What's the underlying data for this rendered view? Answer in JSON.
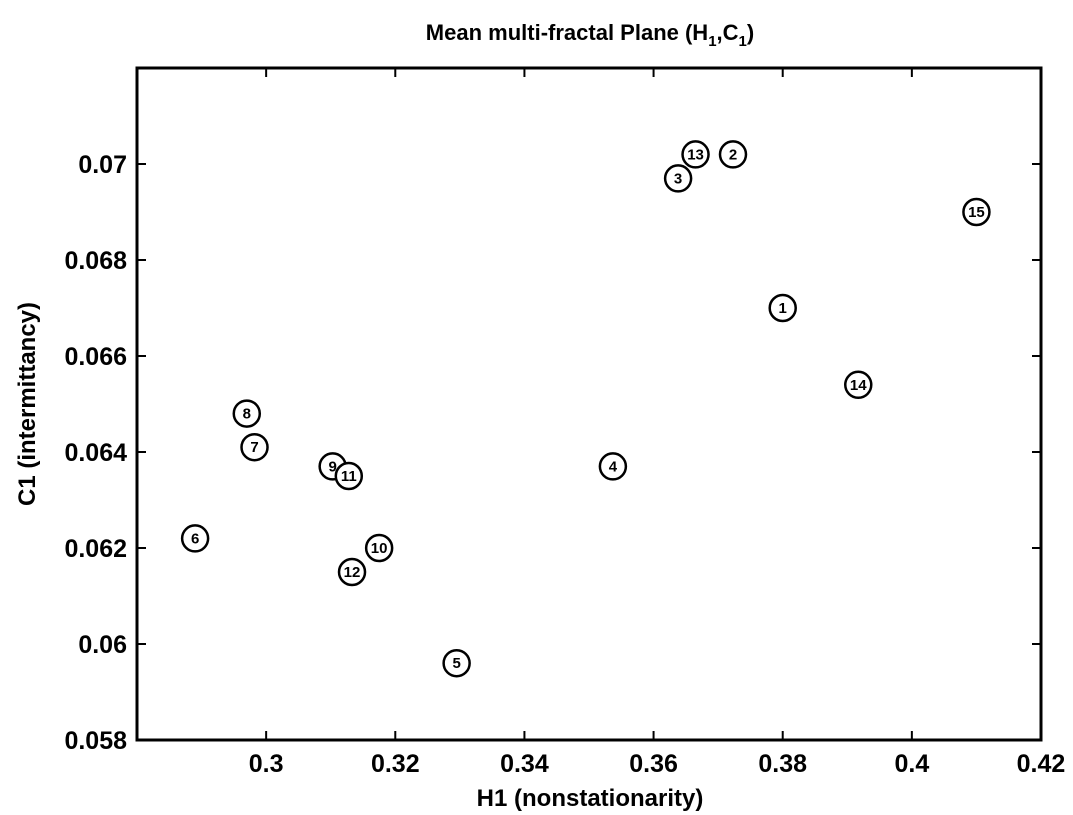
{
  "chart_data": {
    "type": "scatter",
    "title_main": "Mean multi-fractal Plane (H",
    "title_sub1": "1",
    "title_mid": ",C",
    "title_sub2": "1",
    "title_end": ")",
    "xlabel": "H1 (nonstationarity)",
    "ylabel": "C1 (intermittancy)",
    "xlim": [
      0.28,
      0.42
    ],
    "ylim": [
      0.058,
      0.072
    ],
    "xticks": [
      0.3,
      0.32,
      0.34,
      0.36,
      0.38,
      0.4,
      0.42
    ],
    "xtick_labels": [
      "0.3",
      "0.32",
      "0.34",
      "0.36",
      "0.38",
      "0.4",
      "0.42"
    ],
    "yticks": [
      0.058,
      0.06,
      0.062,
      0.064,
      0.066,
      0.068,
      0.07
    ],
    "ytick_labels": [
      "0.058",
      "0.06",
      "0.062",
      "0.064",
      "0.066",
      "0.068",
      "0.07"
    ],
    "grid": false,
    "marker": "numbered circles",
    "points": [
      {
        "label": "1",
        "x": 0.38,
        "y": 0.067
      },
      {
        "label": "2",
        "x": 0.3723,
        "y": 0.0702
      },
      {
        "label": "3",
        "x": 0.3638,
        "y": 0.0697
      },
      {
        "label": "4",
        "x": 0.3537,
        "y": 0.0637
      },
      {
        "label": "5",
        "x": 0.3295,
        "y": 0.0596
      },
      {
        "label": "6",
        "x": 0.289,
        "y": 0.0622
      },
      {
        "label": "7",
        "x": 0.2982,
        "y": 0.0641
      },
      {
        "label": "8",
        "x": 0.297,
        "y": 0.0648
      },
      {
        "label": "9",
        "x": 0.3103,
        "y": 0.0637
      },
      {
        "label": "10",
        "x": 0.3175,
        "y": 0.062
      },
      {
        "label": "11",
        "x": 0.3128,
        "y": 0.0635
      },
      {
        "label": "12",
        "x": 0.3133,
        "y": 0.0615
      },
      {
        "label": "13",
        "x": 0.3665,
        "y": 0.0702
      },
      {
        "label": "14",
        "x": 0.3917,
        "y": 0.0654
      },
      {
        "label": "15",
        "x": 0.41,
        "y": 0.069
      }
    ]
  }
}
